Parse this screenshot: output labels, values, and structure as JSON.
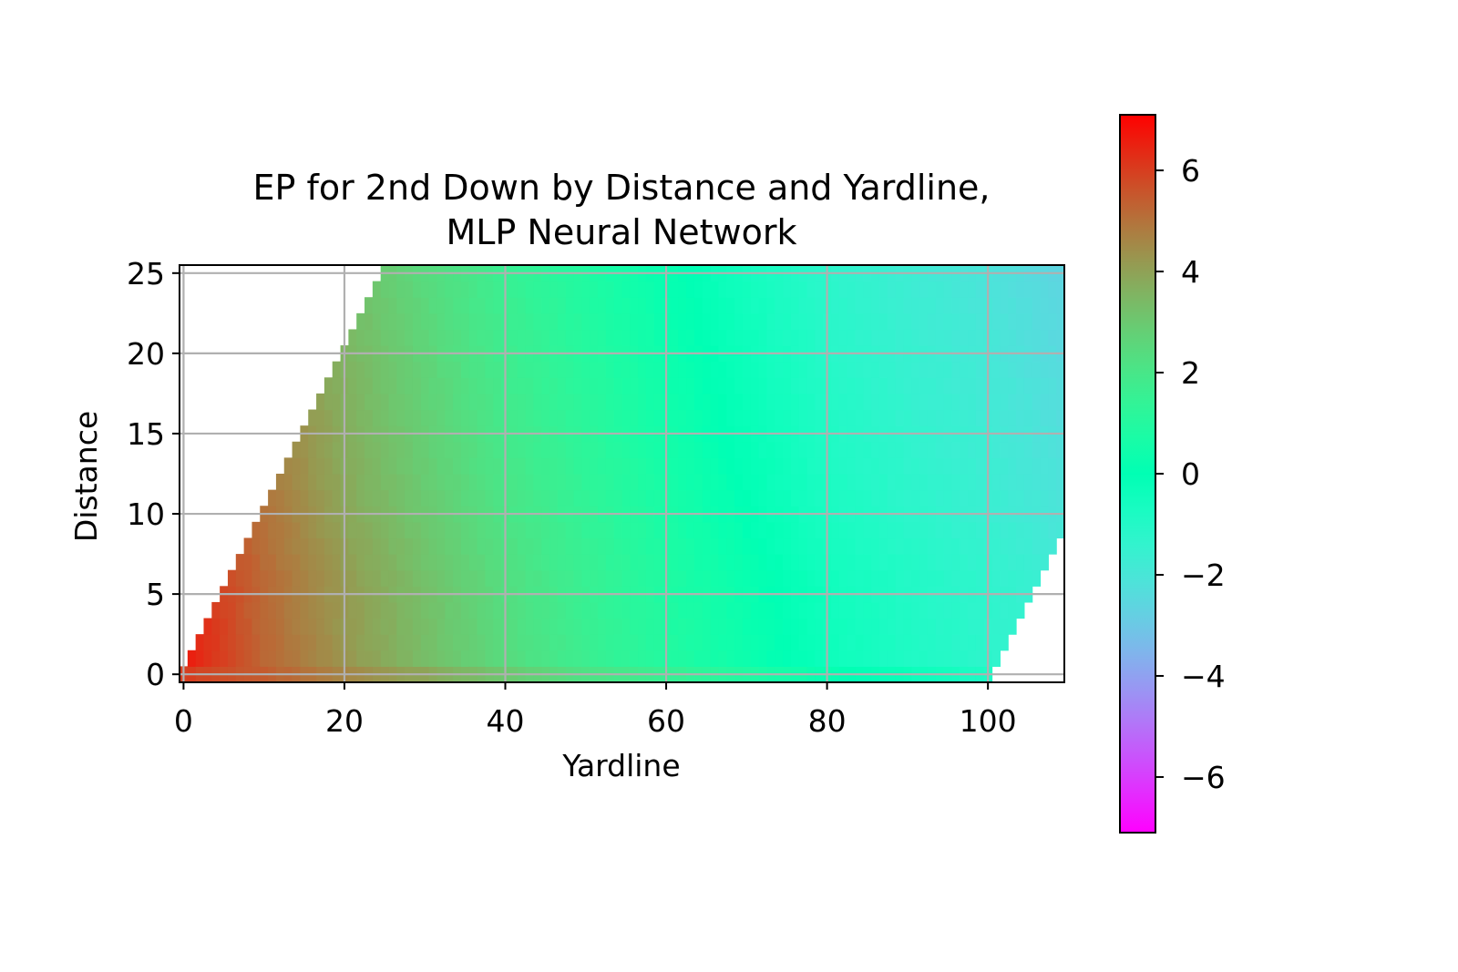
{
  "chart_data": {
    "type": "heatmap",
    "title": "EP for 2nd Down by Distance and Yardline,",
    "subtitle": "MLP Neural Network",
    "xlabel": "Yardline",
    "ylabel": "Distance",
    "xlim": [
      -0.5,
      109.5
    ],
    "ylim": [
      -0.5,
      25.5
    ],
    "xticks": [
      0,
      20,
      40,
      60,
      80,
      100
    ],
    "yticks": [
      0,
      5,
      10,
      15,
      20,
      25
    ],
    "grid": true,
    "colormap": "rainbow",
    "color_range": [
      -7.1,
      7.1
    ],
    "colorbar_ticks": [
      6,
      4,
      2,
      0,
      -2,
      -4,
      -6
    ],
    "colorbar_tick_labels": [
      "6",
      "4",
      "2",
      "0",
      "−2",
      "−4",
      "−6"
    ],
    "grid_color": "#b0b0b0",
    "value_profile_by_yardline": [
      {
        "yardline": 0,
        "distance_0": 6.0,
        "distance_1_to_5": 6.6,
        "distance_10": 6.2
      },
      {
        "yardline": 10,
        "distance_0": 5.4,
        "distance_1_to_5": 5.2,
        "distance_10": 5.0
      },
      {
        "yardline": 20,
        "distance_0": 4.6,
        "distance_1_to_5": 4.2,
        "distance_10": 3.9
      },
      {
        "yardline": 30,
        "distance_0": 3.9,
        "distance_1_to_5": 3.3,
        "distance_10": 3.0
      },
      {
        "yardline": 40,
        "distance_0": 3.0,
        "distance_1_to_5": 2.4,
        "distance_10": 2.1
      },
      {
        "yardline": 50,
        "distance_0": 2.2,
        "distance_1_to_5": 1.6,
        "distance_10": 1.4
      },
      {
        "yardline": 60,
        "distance_0": 1.6,
        "distance_1_to_5": 0.9,
        "distance_10": 0.7
      },
      {
        "yardline": 70,
        "distance_0": 0.9,
        "distance_1_to_5": 0.3,
        "distance_10": 0.0
      },
      {
        "yardline": 80,
        "distance_0": 0.2,
        "distance_1_to_5": -0.4,
        "distance_10": -0.7
      },
      {
        "yardline": 90,
        "distance_0": -0.3,
        "distance_1_to_5": -0.9,
        "distance_10": -1.2
      },
      {
        "yardline": 100,
        "distance_0": -0.8,
        "distance_1_to_5": -1.3,
        "distance_10": -1.6
      },
      {
        "yardline": 109,
        "distance_0": -1.2,
        "distance_1_to_5": -1.7,
        "distance_10": -2.1
      }
    ],
    "long_distance_adjustment_per_yard": -0.035,
    "coverage": "distance <= yardline (for yardline < 25) and distance >= yardline - 100 (for yardline > 100)"
  }
}
